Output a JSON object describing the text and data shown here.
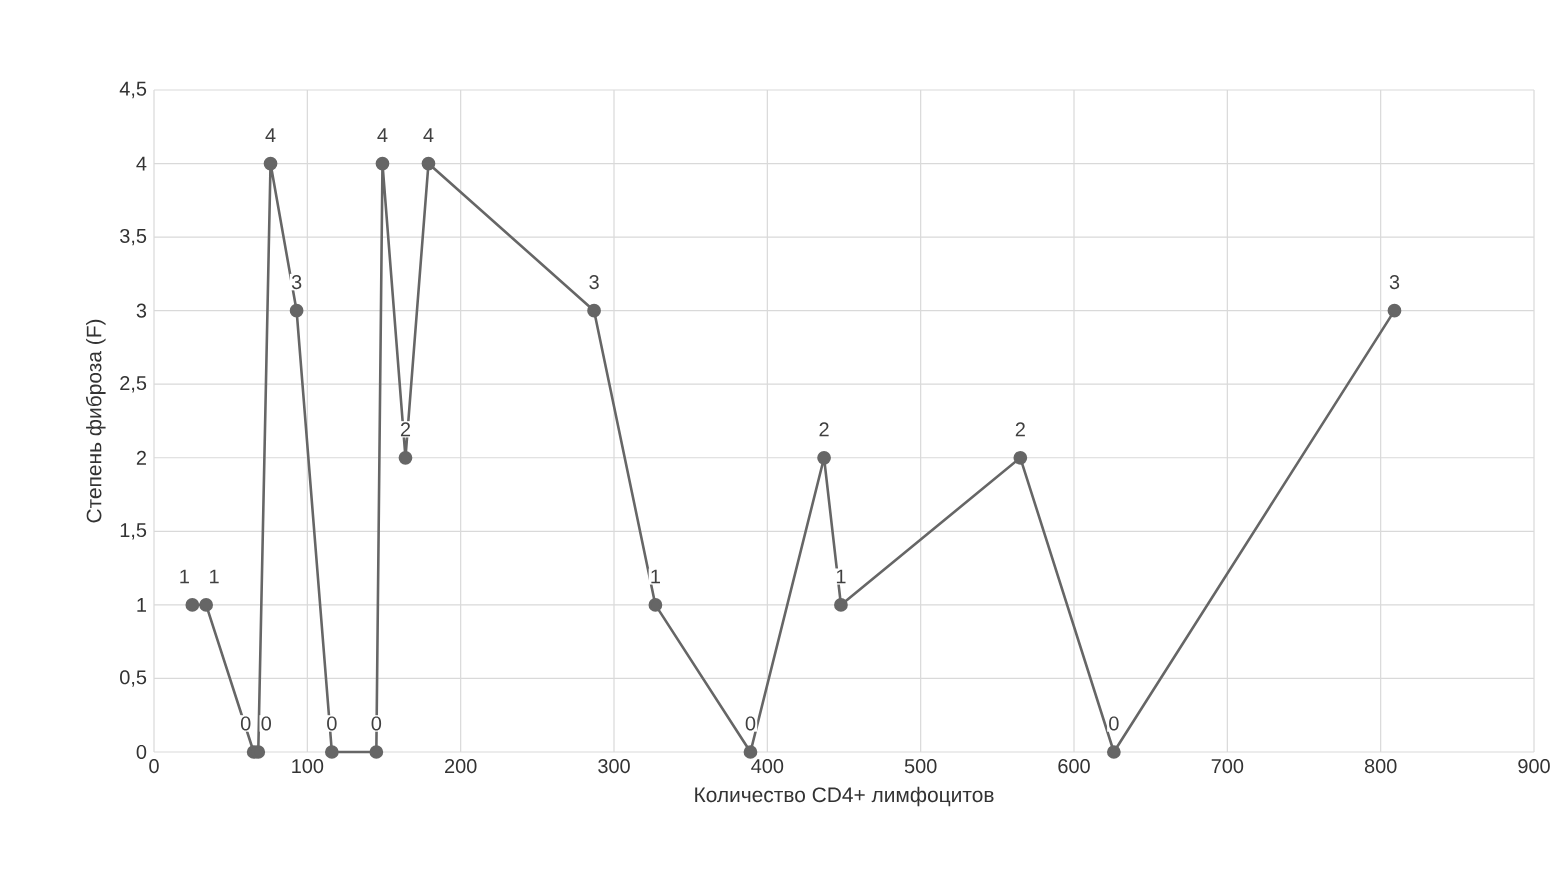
{
  "chart_data": {
    "type": "line",
    "xlabel": "Количество CD4+ лимфоцитов",
    "ylabel": "Степень фиброза (F)",
    "x": [
      25,
      34,
      65,
      68,
      76,
      93,
      116,
      145,
      149,
      164,
      179,
      287,
      327,
      389,
      437,
      448,
      565,
      626,
      809
    ],
    "series": [
      {
        "color": "#666666",
        "values": [
          1,
          1,
          0,
          0,
          4,
          3,
          0,
          0,
          4,
          2,
          4,
          3,
          1,
          0,
          2,
          1,
          2,
          0,
          3
        ]
      }
    ],
    "data_labels": true,
    "marker": "circle",
    "line_style": "solid",
    "grid": true,
    "xlim": [
      0,
      900
    ],
    "xticks": [
      0,
      100,
      200,
      300,
      400,
      500,
      600,
      700,
      800,
      900
    ],
    "ylim": [
      0,
      4.5
    ],
    "yticks": [
      0,
      {
        "value": 0.5,
        "label": "0,5"
      },
      1,
      {
        "value": 1.5,
        "label": "1,5"
      },
      2,
      {
        "value": 2.5,
        "label": "2,5"
      },
      3,
      {
        "value": 3.5,
        "label": "3,5"
      },
      4,
      {
        "value": 4.5,
        "label": "4,5"
      }
    ]
  }
}
